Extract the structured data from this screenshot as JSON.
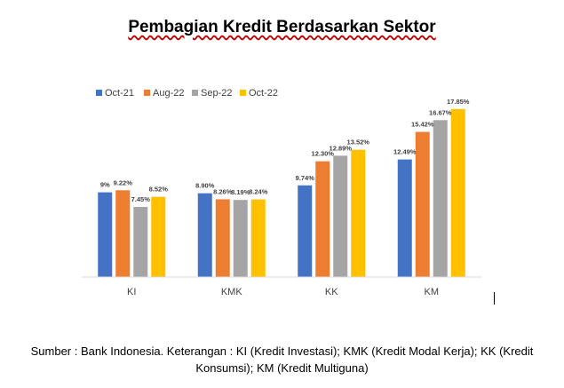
{
  "title": "Pembagian Kredit Berdasarkan Sektor",
  "source_note": "Sumber : Bank Indonesia. Keterangan : KI (Kredit Investasi); KMK (Kredit Modal Kerja); KK (Kredit Konsumsi); KM (Kredit Multiguna)",
  "chart_data": {
    "type": "bar",
    "title": "Pembagian Kredit Berdasarkan Sektor",
    "categories": [
      "KI",
      "KMK",
      "KK",
      "KM"
    ],
    "series": [
      {
        "name": "Oct-21",
        "color": "#4472c4",
        "values": [
          9.0,
          8.9,
          9.74,
          12.49
        ],
        "labels": [
          "9%",
          "8.90%",
          "9.74%",
          "12.49%"
        ]
      },
      {
        "name": "Aug-22",
        "color": "#ed7d31",
        "values": [
          9.22,
          8.26,
          12.3,
          15.42
        ],
        "labels": [
          "9.22%",
          "8.26%",
          "12.30%",
          "15.42%"
        ]
      },
      {
        "name": "Sep-22",
        "color": "#a5a5a5",
        "values": [
          7.45,
          8.19,
          12.89,
          16.67
        ],
        "labels": [
          "7.45%",
          "8.19%",
          "12.89%",
          "16.67%"
        ]
      },
      {
        "name": "Oct-22",
        "color": "#ffc000",
        "values": [
          8.52,
          8.24,
          13.52,
          17.85
        ],
        "labels": [
          "8.52%",
          "8.24%",
          "13.52%",
          "17.85%"
        ]
      }
    ],
    "ylim": [
      0,
      19
    ],
    "grid": false,
    "legend": "top-left",
    "xlabel": "",
    "ylabel": ""
  }
}
